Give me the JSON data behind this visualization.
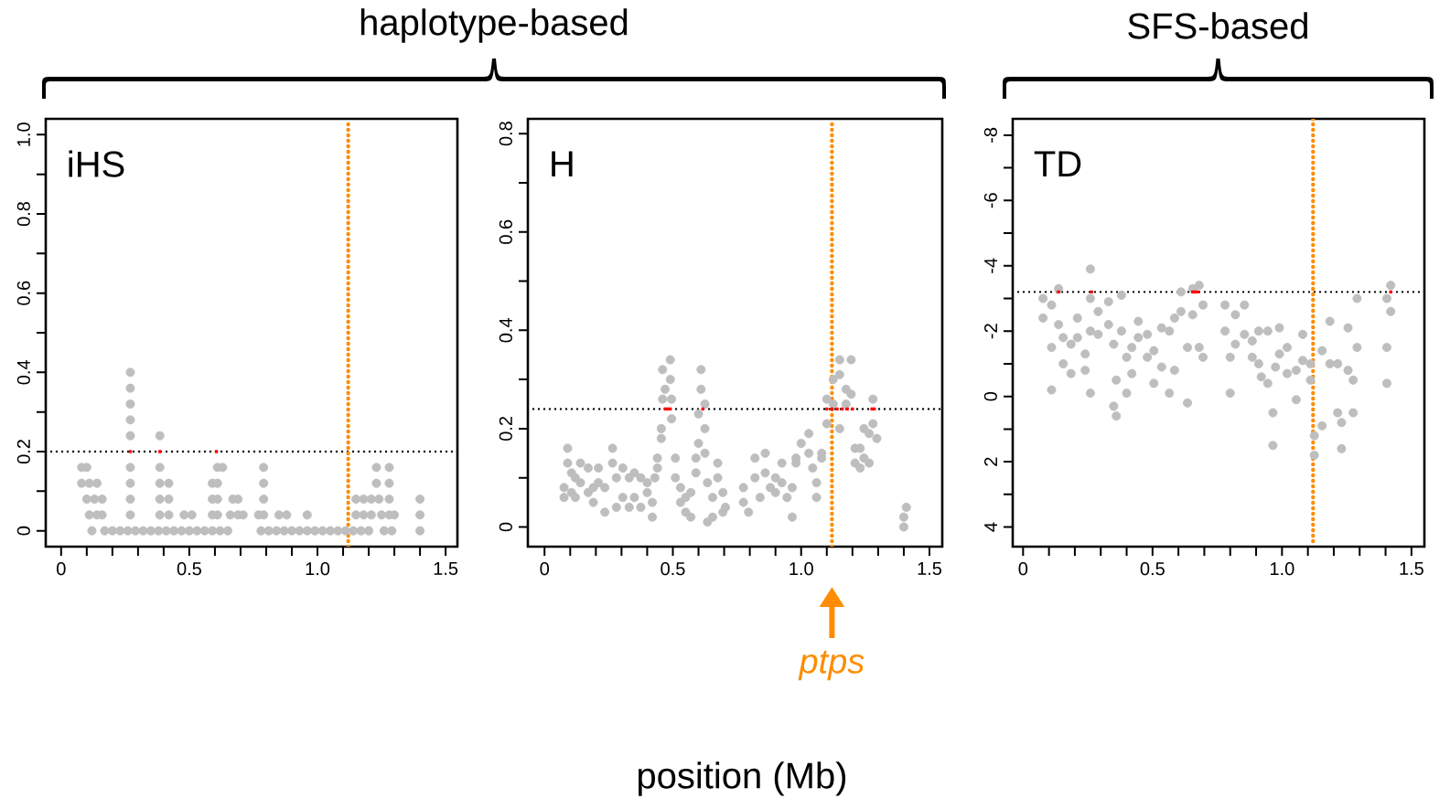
{
  "chart_data": [
    {
      "type": "scatter",
      "title": "iHS",
      "annotations": [
        "haplotype-based"
      ],
      "marker": "circle",
      "xlim": [
        -0.06,
        1.546
      ],
      "ylim": [
        -0.04,
        1.04
      ],
      "xticks": [
        0,
        {
          "value": 0.1,
          "label": null
        },
        {
          "value": 0.2,
          "label": null
        },
        {
          "value": 0.3,
          "label": null
        },
        {
          "value": 0.4,
          "label": null
        },
        0.5,
        {
          "value": 0.6,
          "label": null
        },
        {
          "value": 0.7,
          "label": null
        },
        {
          "value": 0.8,
          "label": null
        },
        {
          "value": 0.9,
          "label": null
        },
        {
          "value": 1,
          "label": "1.0"
        },
        {
          "value": 1.1,
          "label": null
        },
        {
          "value": 1.2,
          "label": null
        },
        {
          "value": 1.3,
          "label": null
        },
        {
          "value": 1.4,
          "label": null
        },
        1.5
      ],
      "yticks": [
        0,
        {
          "value": 0.1,
          "label": null
        },
        0.2,
        {
          "value": 0.3,
          "label": null
        },
        0.4,
        {
          "value": 0.5,
          "label": null
        },
        0.6,
        {
          "value": 0.7,
          "label": null
        },
        0.8,
        {
          "value": 0.9,
          "label": null
        },
        {
          "value": 1,
          "label": "1.0"
        }
      ],
      "ref_lines": [
        {
          "axis": "y",
          "value": 0.2,
          "color": "#000000",
          "line_style": "dotted"
        },
        {
          "axis": "x",
          "value": 1.12,
          "color": "#ff8c00",
          "line_style": "dotted"
        }
      ],
      "series": [
        {
          "color": "#bebebe",
          "x": [
            0.08,
            0.1,
            0.08,
            0.11,
            0.14,
            0.1,
            0.13,
            0.16,
            0.11,
            0.14,
            0.16,
            0.12,
            0.27,
            0.27,
            0.27,
            0.27,
            0.27,
            0.27,
            0.27,
            0.27,
            0.27,
            0.17,
            0.2,
            0.23,
            0.26,
            0.29,
            0.32,
            0.35,
            0.38,
            0.41,
            0.44,
            0.47,
            0.5,
            0.53,
            0.56,
            0.59,
            0.62,
            0.65,
            0.78,
            0.81,
            0.84,
            0.87,
            0.9,
            0.93,
            0.96,
            0.99,
            1.02,
            1.05,
            1.08,
            1.11,
            1.14,
            1.17,
            1.2,
            1.26,
            1.29,
            1.4,
            0.385,
            0.385,
            0.385,
            0.385,
            0.385,
            0.42,
            0.42,
            0.42,
            0.48,
            0.51,
            0.59,
            0.59,
            0.59,
            0.61,
            0.61,
            0.61,
            0.61,
            0.63,
            0.67,
            0.69,
            0.66,
            0.69,
            0.71,
            0.79,
            0.79,
            0.79,
            0.79,
            0.77,
            0.85,
            0.88,
            0.96,
            1.15,
            1.18,
            1.21,
            1.24,
            1.15,
            1.18,
            1.21,
            1.23,
            1.23,
            1.25,
            1.28,
            1.3,
            1.28,
            1.28,
            1.28,
            1.4,
            1.4
          ],
          "values": [
            0.16,
            0.16,
            0.12,
            0.12,
            0.12,
            0.08,
            0.08,
            0.08,
            0.04,
            0.04,
            0.04,
            0,
            0.4,
            0.36,
            0.32,
            0.28,
            0.24,
            0.16,
            0.12,
            0.08,
            0.04,
            0,
            0,
            0,
            0,
            0,
            0,
            0,
            0,
            0,
            0,
            0,
            0,
            0,
            0,
            0,
            0,
            0,
            0,
            0,
            0,
            0,
            0,
            0,
            0,
            0,
            0,
            0,
            0,
            0,
            0,
            0,
            0,
            0,
            0,
            0,
            0.24,
            0.16,
            0.12,
            0.08,
            0.04,
            0.12,
            0.08,
            0.04,
            0.04,
            0.04,
            0.12,
            0.08,
            0.04,
            0.16,
            0.12,
            0.08,
            0.04,
            0.16,
            0.08,
            0.08,
            0.04,
            0.04,
            0.04,
            0.16,
            0.12,
            0.08,
            0.04,
            0.04,
            0.04,
            0.04,
            0.04,
            0.08,
            0.08,
            0.08,
            0.08,
            0.04,
            0.04,
            0.04,
            0.16,
            0.12,
            0.04,
            0.04,
            0.04,
            0.16,
            0.12,
            0.08,
            0.08,
            0.04
          ]
        },
        {
          "color": "#ff0000",
          "marker": "square",
          "x": [
            0.27,
            0.385,
            0.606
          ],
          "values": [
            0.2,
            0.2,
            0.2
          ]
        }
      ]
    },
    {
      "type": "scatter",
      "title": "H",
      "xlabel": "position (Mb)",
      "marker": "circle",
      "xlim": [
        -0.065,
        1.55
      ],
      "ylim": [
        -0.04,
        0.83
      ],
      "xticks": [
        0,
        {
          "value": 0.1,
          "label": null
        },
        {
          "value": 0.2,
          "label": null
        },
        {
          "value": 0.3,
          "label": null
        },
        {
          "value": 0.4,
          "label": null
        },
        0.5,
        {
          "value": 0.6,
          "label": null
        },
        {
          "value": 0.7,
          "label": null
        },
        {
          "value": 0.8,
          "label": null
        },
        {
          "value": 0.9,
          "label": null
        },
        {
          "value": 1,
          "label": "1.0"
        },
        {
          "value": 1.1,
          "label": null
        },
        {
          "value": 1.2,
          "label": null
        },
        {
          "value": 1.3,
          "label": null
        },
        {
          "value": 1.4,
          "label": null
        },
        1.5
      ],
      "yticks": [
        0,
        {
          "value": 0.1,
          "label": null
        },
        0.2,
        {
          "value": 0.3,
          "label": null
        },
        0.4,
        {
          "value": 0.5,
          "label": null
        },
        0.6,
        {
          "value": 0.7,
          "label": null
        },
        0.8
      ],
      "ref_lines": [
        {
          "axis": "y",
          "value": 0.24,
          "color": "#000000",
          "line_style": "dotted"
        },
        {
          "axis": "x",
          "value": 1.12,
          "color": "#ff8c00",
          "line_style": "dotted",
          "label": "ptps"
        }
      ],
      "series": [
        {
          "color": "#bebebe",
          "x": [
            0.076,
            0.076,
            0.09,
            0.09,
            0.105,
            0.105,
            0.12,
            0.12,
            0.14,
            0.14,
            0.17,
            0.17,
            0.19,
            0.19,
            0.21,
            0.21,
            0.235,
            0.235,
            0.265,
            0.265,
            0.28,
            0.28,
            0.305,
            0.305,
            0.33,
            0.33,
            0.35,
            0.35,
            0.375,
            0.375,
            0.4,
            0.4,
            0.42,
            0.42,
            0.43,
            0.44,
            0.44,
            0.455,
            0.455,
            0.46,
            0.46,
            0.47,
            0.49,
            0.49,
            0.495,
            0.495,
            0.51,
            0.51,
            0.53,
            0.53,
            0.55,
            0.55,
            0.57,
            0.57,
            0.59,
            0.59,
            0.6,
            0.6,
            0.61,
            0.61,
            0.625,
            0.625,
            0.625,
            0.635,
            0.635,
            0.655,
            0.655,
            0.675,
            0.675,
            0.695,
            0.695,
            0.705,
            0.775,
            0.775,
            0.795,
            0.82,
            0.82,
            0.84,
            0.86,
            0.86,
            0.88,
            0.9,
            0.9,
            0.925,
            0.925,
            0.945,
            0.965,
            0.965,
            0.98,
            0.98,
            1.0,
            1.03,
            1.03,
            1.045,
            1.06,
            1.06,
            1.08,
            1.08,
            1.1,
            1.1,
            1.125,
            1.125,
            1.15,
            1.15,
            1.15,
            1.175,
            1.175,
            1.195,
            1.195,
            1.21,
            1.21,
            1.23,
            1.23,
            1.245,
            1.245,
            1.265,
            1.265,
            1.28,
            1.28,
            1.295,
            1.4,
            1.4,
            1.41
          ],
          "values": [
            0.06,
            0.08,
            0.16,
            0.13,
            0.11,
            0.07,
            0.06,
            0.1,
            0.13,
            0.09,
            0.12,
            0.07,
            0.05,
            0.08,
            0.12,
            0.09,
            0.03,
            0.08,
            0.16,
            0.13,
            0.04,
            0.1,
            0.12,
            0.06,
            0.1,
            0.04,
            0.11,
            0.06,
            0.1,
            0.04,
            0.07,
            0.09,
            0.02,
            0.05,
            0.1,
            0.12,
            0.14,
            0.18,
            0.2,
            0.32,
            0.26,
            0.28,
            0.34,
            0.3,
            0.26,
            0.22,
            0.14,
            0.1,
            0.08,
            0.05,
            0.06,
            0.03,
            0.02,
            0.07,
            0.11,
            0.14,
            0.23,
            0.17,
            0.32,
            0.28,
            0.25,
            0.2,
            0.15,
            0.09,
            0.01,
            0.06,
            0.02,
            0.13,
            0.1,
            0.07,
            0.03,
            0.04,
            0.05,
            0.08,
            0.03,
            0.14,
            0.1,
            0.06,
            0.15,
            0.11,
            0.08,
            0.1,
            0.07,
            0.13,
            0.09,
            0.06,
            0.02,
            0.08,
            0.13,
            0.14,
            0.17,
            0.19,
            0.15,
            0.12,
            0.06,
            0.09,
            0.14,
            0.15,
            0.26,
            0.21,
            0.3,
            0.25,
            0.34,
            0.31,
            0.2,
            0.28,
            0.25,
            0.34,
            0.27,
            0.16,
            0.13,
            0.12,
            0.16,
            0.2,
            0.14,
            0.13,
            0.19,
            0.26,
            0.21,
            0.18,
            0.0,
            0.02,
            0.04
          ]
        },
        {
          "color": "#ff0000",
          "marker": "square",
          "x": [
            0.47,
            0.48,
            0.49,
            0.617,
            1.1,
            1.12,
            1.14,
            1.16,
            1.18,
            1.2,
            1.276,
            1.285
          ],
          "values": [
            0.24,
            0.24,
            0.24,
            0.24,
            0.24,
            0.24,
            0.24,
            0.24,
            0.24,
            0.24,
            0.24,
            0.24
          ]
        }
      ]
    },
    {
      "type": "scatter",
      "title": "TD",
      "annotations": [
        "SFS-based"
      ],
      "marker": "circle",
      "xlim": [
        -0.04,
        1.55
      ],
      "ylim": [
        4.6,
        -8.5
      ],
      "xticks": [
        0,
        {
          "value": 0.1,
          "label": null
        },
        {
          "value": 0.2,
          "label": null
        },
        {
          "value": 0.3,
          "label": null
        },
        {
          "value": 0.4,
          "label": null
        },
        0.5,
        {
          "value": 0.6,
          "label": null
        },
        {
          "value": 0.7,
          "label": null
        },
        {
          "value": 0.8,
          "label": null
        },
        {
          "value": 0.9,
          "label": null
        },
        {
          "value": 1,
          "label": "1.0"
        },
        {
          "value": 1.1,
          "label": null
        },
        {
          "value": 1.2,
          "label": null
        },
        {
          "value": 1.3,
          "label": null
        },
        {
          "value": 1.4,
          "label": null
        },
        1.5
      ],
      "yticks": [
        -8,
        {
          "value": -7,
          "label": null
        },
        -6,
        {
          "value": -5,
          "label": null
        },
        -4,
        {
          "value": -3,
          "label": null
        },
        -2,
        {
          "value": -1,
          "label": null
        },
        0,
        {
          "value": 1,
          "label": null
        },
        2,
        {
          "value": 3,
          "label": null
        },
        4
      ],
      "ref_lines": [
        {
          "axis": "y",
          "value": -3.2,
          "color": "#000000",
          "line_style": "dotted"
        },
        {
          "axis": "x",
          "value": 1.12,
          "color": "#ff8c00",
          "line_style": "dotted"
        }
      ],
      "series": [
        {
          "color": "#bebebe",
          "x": [
            0.077,
            0.077,
            0.11,
            0.11,
            0.11,
            0.137,
            0.137,
            0.155,
            0.155,
            0.185,
            0.185,
            0.21,
            0.21,
            0.24,
            0.24,
            0.26,
            0.26,
            0.26,
            0.26,
            0.29,
            0.29,
            0.33,
            0.33,
            0.35,
            0.35,
            0.36,
            0.36,
            0.38,
            0.38,
            0.4,
            0.4,
            0.42,
            0.42,
            0.445,
            0.445,
            0.48,
            0.48,
            0.505,
            0.505,
            0.535,
            0.535,
            0.565,
            0.565,
            0.585,
            0.585,
            0.61,
            0.61,
            0.635,
            0.635,
            0.655,
            0.655,
            0.68,
            0.68,
            0.695,
            0.695,
            0.78,
            0.78,
            0.8,
            0.8,
            0.82,
            0.82,
            0.855,
            0.855,
            0.885,
            0.885,
            0.91,
            0.91,
            0.92,
            0.945,
            0.945,
            0.965,
            0.965,
            0.975,
            0.99,
            0.99,
            1.02,
            1.02,
            1.055,
            1.055,
            1.08,
            1.08,
            1.11,
            1.11,
            1.125,
            1.125,
            1.155,
            1.155,
            1.185,
            1.185,
            1.215,
            1.215,
            1.23,
            1.23,
            1.255,
            1.255,
            1.275,
            1.275,
            1.29,
            1.29,
            1.405,
            1.405,
            1.405,
            1.42,
            1.42
          ],
          "values": [
            -2.4,
            -3.0,
            -0.2,
            -1.5,
            -2.8,
            -3.3,
            -2.2,
            -1.0,
            -1.8,
            -0.7,
            -1.6,
            -1.8,
            -2.4,
            -0.8,
            -1.3,
            -3.9,
            -3.0,
            -2.0,
            -0.1,
            -2.6,
            -1.9,
            -2.9,
            -2.2,
            -1.6,
            0.3,
            0.6,
            -0.5,
            -3.1,
            -2.0,
            -0.1,
            -1.2,
            -0.7,
            -1.5,
            -2.3,
            -1.8,
            -1.9,
            -1.2,
            -0.4,
            -1.4,
            -2.1,
            -0.9,
            -0.1,
            -2.0,
            -2.4,
            -0.8,
            -3.2,
            -2.6,
            0.2,
            -1.5,
            -3.3,
            -2.5,
            -3.4,
            -1.5,
            -2.8,
            -1.2,
            -2.8,
            -2.0,
            -0.1,
            -1.2,
            -2.5,
            -1.6,
            -2.8,
            -1.9,
            -1.7,
            -1.2,
            -2.0,
            -1.0,
            -0.6,
            -2.0,
            -0.4,
            1.5,
            0.5,
            -0.9,
            -2.1,
            -1.3,
            -1.5,
            -0.7,
            0.1,
            -0.8,
            -1.9,
            -1.1,
            -0.5,
            -1.0,
            1.8,
            1.2,
            0.9,
            -1.4,
            -2.3,
            -1.0,
            0.5,
            -1.0,
            1.6,
            0.8,
            -2.1,
            -0.8,
            0.5,
            -0.5,
            -3.0,
            -1.5,
            -3.0,
            -1.5,
            -0.4,
            -3.4,
            -2.6
          ]
        },
        {
          "color": "#ff0000",
          "marker": "square",
          "x": [
            0.137,
            0.265,
            0.655,
            0.665,
            0.675,
            1.42
          ],
          "values": [
            -3.2,
            -3.2,
            -3.2,
            -3.2,
            -3.2,
            -3.2
          ]
        }
      ]
    }
  ]
}
